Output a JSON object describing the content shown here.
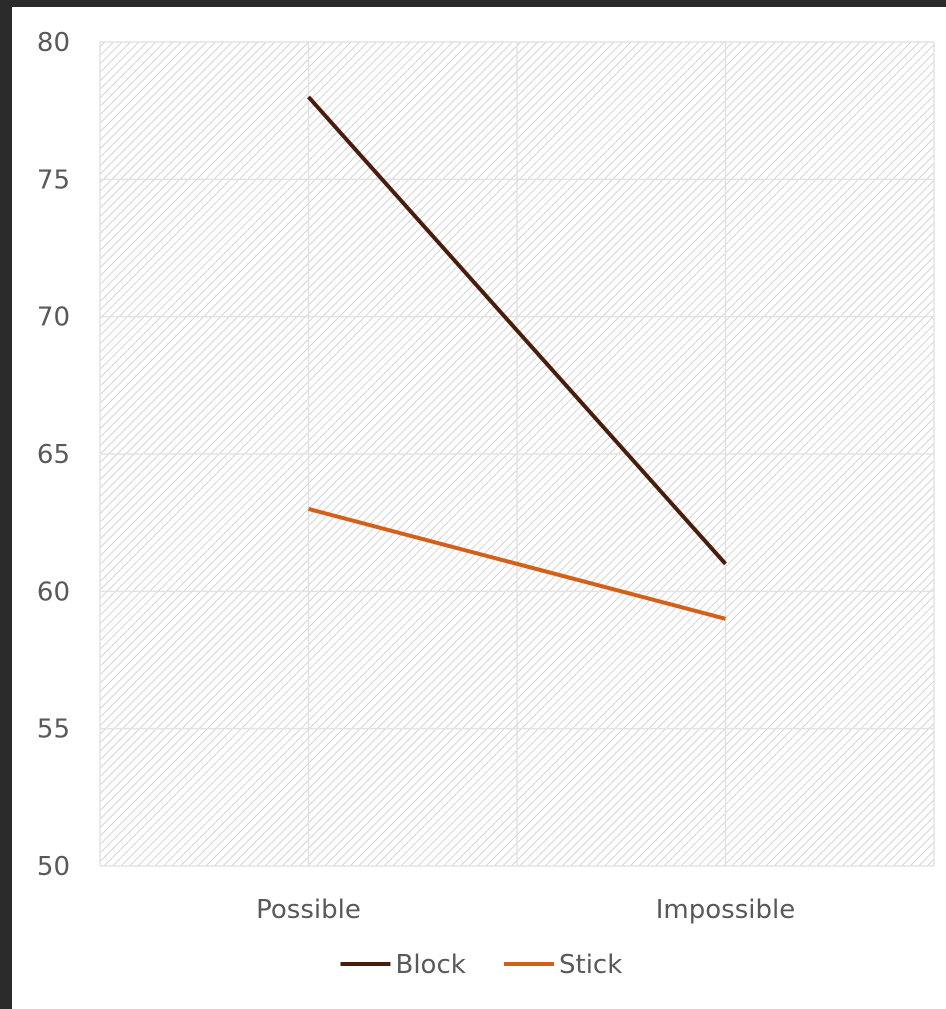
{
  "chart_data": {
    "type": "line",
    "title": "",
    "xlabel": "",
    "ylabel": "",
    "categories": [
      "Possible",
      "Impossible"
    ],
    "ylim": [
      50,
      80
    ],
    "yticks": [
      50,
      55,
      60,
      65,
      70,
      75,
      80
    ],
    "grid": true,
    "legend_position": "bottom",
    "series": [
      {
        "name": "Block",
        "values": [
          78,
          61
        ],
        "color": "#4a1c0c"
      },
      {
        "name": "Stick",
        "values": [
          63,
          59
        ],
        "color": "#d2601a"
      }
    ]
  }
}
